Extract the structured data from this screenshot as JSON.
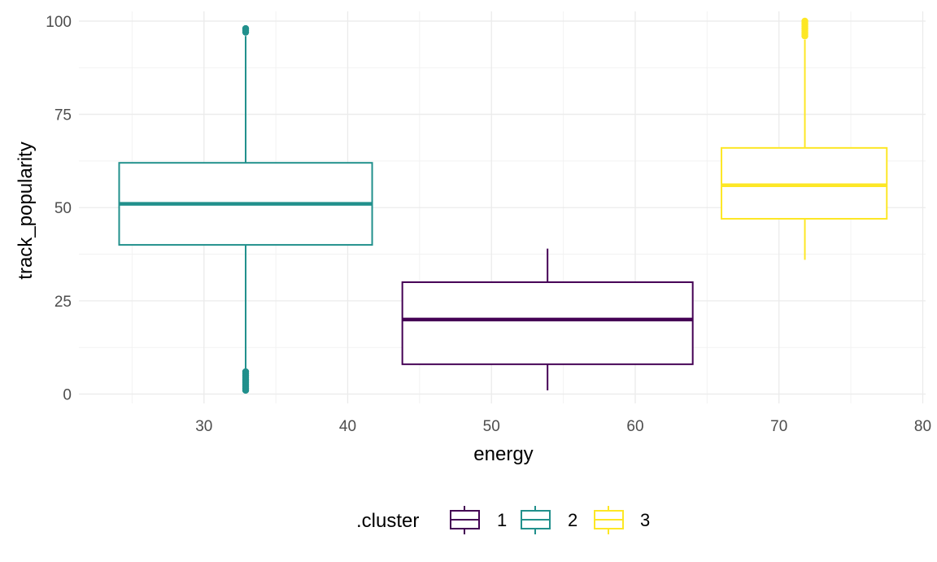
{
  "chart_data": {
    "type": "boxplot",
    "xlabel": "energy",
    "ylabel": "track_popularity",
    "xlim": [
      21.3,
      80.2
    ],
    "ylim": [
      -2.5,
      102.6
    ],
    "x_ticks": [
      30,
      40,
      50,
      60,
      70,
      80
    ],
    "y_ticks": [
      0,
      25,
      50,
      75,
      100
    ],
    "grid": true,
    "legend": {
      "title": ".cluster",
      "position": "bottom",
      "entries": [
        "1",
        "2",
        "3"
      ]
    },
    "series": [
      {
        "name": "1",
        "color": "#440154",
        "x_min": 43.8,
        "x_max": 64.0,
        "x_center": 53.9,
        "whisker_low": 1,
        "q1": 8,
        "median": 20,
        "q3": 30,
        "whisker_high": 39,
        "outliers": []
      },
      {
        "name": "2",
        "color": "#21908C",
        "x_min": 24.1,
        "x_max": 41.7,
        "x_center": 32.9,
        "whisker_low": 6,
        "q1": 40,
        "median": 51,
        "q3": 62,
        "whisker_high": 96,
        "outliers": [
          1,
          1.5,
          2,
          2.5,
          3,
          3.5,
          4,
          4.5,
          5,
          5.5,
          6,
          97,
          97.5,
          98
        ]
      },
      {
        "name": "3",
        "color": "#FDE725",
        "x_min": 66.0,
        "x_max": 77.5,
        "x_center": 71.8,
        "whisker_low": 36,
        "q1": 47,
        "median": 56,
        "q3": 66,
        "whisker_high": 95,
        "outliers": [
          96,
          96.5,
          97,
          97.5,
          98,
          98.5,
          99,
          99.5,
          100
        ]
      }
    ]
  }
}
